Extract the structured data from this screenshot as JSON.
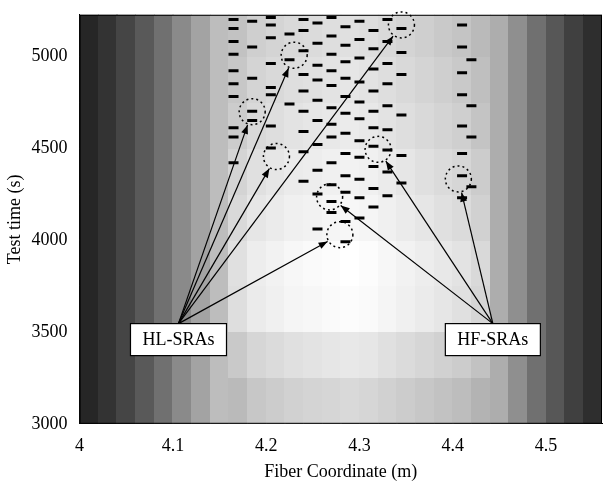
{
  "chart_data": {
    "type": "heatmap",
    "x_label": "Fiber Coordinate (m)",
    "y_label": "Test time (s)",
    "xlim": [
      4.0,
      4.56
    ],
    "ylim": [
      3000,
      5225
    ],
    "xticks": [
      4,
      4.1,
      4.2,
      4.3,
      4.4,
      4.5
    ],
    "yticks": [
      3000,
      3500,
      4000,
      4500,
      5000
    ],
    "grid": false,
    "x_bins": [
      4.0,
      4.02,
      4.04,
      4.06,
      4.08,
      4.1,
      4.12,
      4.14,
      4.16,
      4.18,
      4.2,
      4.22,
      4.24,
      4.26,
      4.28,
      4.3,
      4.32,
      4.34,
      4.36,
      4.38,
      4.4,
      4.42,
      4.44,
      4.46,
      4.48,
      4.5,
      4.52,
      4.54,
      4.56
    ],
    "y_bins": [
      3000,
      3250,
      3500,
      3750,
      4000,
      4250,
      4500,
      4750,
      5000,
      5225
    ],
    "cells": [
      [
        0.15,
        0.2,
        0.27,
        0.35,
        0.44,
        0.54,
        0.64,
        0.74,
        0.73,
        0.78,
        0.8,
        0.82,
        0.83,
        0.84,
        0.85,
        0.84,
        0.82,
        0.8,
        0.78,
        0.76,
        0.74,
        0.7,
        0.68,
        0.56,
        0.44,
        0.34,
        0.25,
        0.18
      ],
      [
        0.15,
        0.2,
        0.27,
        0.35,
        0.44,
        0.54,
        0.64,
        0.74,
        0.79,
        0.84,
        0.86,
        0.88,
        0.89,
        0.9,
        0.91,
        0.9,
        0.88,
        0.86,
        0.84,
        0.82,
        0.8,
        0.76,
        0.68,
        0.56,
        0.44,
        0.34,
        0.25,
        0.18
      ],
      [
        0.15,
        0.2,
        0.27,
        0.35,
        0.44,
        0.54,
        0.64,
        0.74,
        0.87,
        0.92,
        0.94,
        0.96,
        0.97,
        0.98,
        0.99,
        0.98,
        0.96,
        0.94,
        0.92,
        0.9,
        0.88,
        0.84,
        0.68,
        0.56,
        0.44,
        0.34,
        0.25,
        0.18
      ],
      [
        0.15,
        0.2,
        0.27,
        0.35,
        0.44,
        0.54,
        0.64,
        0.74,
        0.88,
        0.93,
        0.95,
        0.97,
        0.98,
        0.99,
        1,
        0.99,
        0.97,
        0.95,
        0.93,
        0.91,
        0.89,
        0.85,
        0.68,
        0.56,
        0.44,
        0.34,
        0.25,
        0.18
      ],
      [
        0.15,
        0.2,
        0.27,
        0.35,
        0.44,
        0.54,
        0.64,
        0.74,
        0.85,
        0.9,
        0.92,
        0.94,
        0.95,
        0.96,
        0.97,
        0.96,
        0.94,
        0.92,
        0.9,
        0.88,
        0.86,
        0.82,
        0.68,
        0.56,
        0.44,
        0.34,
        0.25,
        0.18
      ],
      [
        0.15,
        0.2,
        0.27,
        0.35,
        0.44,
        0.54,
        0.64,
        0.74,
        0.83,
        0.88,
        0.9,
        0.92,
        0.93,
        0.94,
        0.95,
        0.94,
        0.92,
        0.9,
        0.88,
        0.86,
        0.84,
        0.8,
        0.68,
        0.56,
        0.44,
        0.34,
        0.25,
        0.18
      ],
      [
        0.15,
        0.2,
        0.27,
        0.35,
        0.44,
        0.54,
        0.64,
        0.74,
        0.8,
        0.85,
        0.87,
        0.89,
        0.9,
        0.91,
        0.92,
        0.91,
        0.89,
        0.87,
        0.85,
        0.83,
        0.81,
        0.77,
        0.68,
        0.56,
        0.44,
        0.34,
        0.25,
        0.18
      ],
      [
        0.15,
        0.2,
        0.27,
        0.35,
        0.44,
        0.54,
        0.64,
        0.74,
        0.78,
        0.83,
        0.85,
        0.87,
        0.88,
        0.89,
        0.9,
        0.89,
        0.87,
        0.85,
        0.83,
        0.81,
        0.79,
        0.75,
        0.68,
        0.56,
        0.44,
        0.34,
        0.25,
        0.18
      ],
      [
        0.15,
        0.2,
        0.27,
        0.35,
        0.44,
        0.54,
        0.64,
        0.74,
        0.76,
        0.81,
        0.83,
        0.85,
        0.86,
        0.87,
        0.88,
        0.87,
        0.85,
        0.83,
        0.81,
        0.79,
        0.77,
        0.73,
        0.68,
        0.56,
        0.44,
        0.34,
        0.25,
        0.18
      ]
    ],
    "marks": {
      "color": "#000000",
      "marker": "dash",
      "points": [
        [
          4.165,
          4420
        ],
        [
          4.165,
          4560
        ],
        [
          4.165,
          4610
        ],
        [
          4.165,
          4780
        ],
        [
          4.165,
          4850
        ],
        [
          4.165,
          4920
        ],
        [
          4.165,
          5010
        ],
        [
          4.165,
          5080
        ],
        [
          4.165,
          5150
        ],
        [
          4.165,
          5200
        ],
        [
          4.185,
          4650
        ],
        [
          4.185,
          4700
        ],
        [
          4.185,
          4880
        ],
        [
          4.185,
          5050
        ],
        [
          4.185,
          5190
        ],
        [
          4.205,
          4500
        ],
        [
          4.205,
          4620
        ],
        [
          4.205,
          4790
        ],
        [
          4.205,
          4830
        ],
        [
          4.205,
          4960
        ],
        [
          4.205,
          5100
        ],
        [
          4.205,
          5170
        ],
        [
          4.205,
          5210
        ],
        [
          4.225,
          4740
        ],
        [
          4.225,
          4980
        ],
        [
          4.225,
          5120
        ],
        [
          4.24,
          4320
        ],
        [
          4.24,
          4480
        ],
        [
          4.24,
          4590
        ],
        [
          4.24,
          4700
        ],
        [
          4.24,
          4810
        ],
        [
          4.24,
          4900
        ],
        [
          4.24,
          5030
        ],
        [
          4.24,
          5140
        ],
        [
          4.24,
          5200
        ],
        [
          4.255,
          4060
        ],
        [
          4.255,
          4250
        ],
        [
          4.255,
          4380
        ],
        [
          4.255,
          4520
        ],
        [
          4.255,
          4650
        ],
        [
          4.255,
          4760
        ],
        [
          4.255,
          4870
        ],
        [
          4.255,
          4950
        ],
        [
          4.255,
          5070
        ],
        [
          4.255,
          5180
        ],
        [
          4.27,
          4150
        ],
        [
          4.27,
          4210
        ],
        [
          4.27,
          4300
        ],
        [
          4.27,
          4420
        ],
        [
          4.27,
          4560
        ],
        [
          4.27,
          4630
        ],
        [
          4.27,
          4720
        ],
        [
          4.27,
          4840
        ],
        [
          4.27,
          4920
        ],
        [
          4.27,
          5010
        ],
        [
          4.27,
          5110
        ],
        [
          4.27,
          5210
        ],
        [
          4.285,
          3990
        ],
        [
          4.285,
          4100
        ],
        [
          4.285,
          4260
        ],
        [
          4.285,
          4350
        ],
        [
          4.285,
          4470
        ],
        [
          4.285,
          4580
        ],
        [
          4.285,
          4690
        ],
        [
          4.285,
          4780
        ],
        [
          4.285,
          4880
        ],
        [
          4.285,
          4970
        ],
        [
          4.285,
          5060
        ],
        [
          4.285,
          5160
        ],
        [
          4.3,
          4120
        ],
        [
          4.3,
          4230
        ],
        [
          4.3,
          4330
        ],
        [
          4.3,
          4450
        ],
        [
          4.3,
          4540
        ],
        [
          4.3,
          4660
        ],
        [
          4.3,
          4750
        ],
        [
          4.3,
          4860
        ],
        [
          4.3,
          4990
        ],
        [
          4.3,
          5090
        ],
        [
          4.3,
          5190
        ],
        [
          4.315,
          4180
        ],
        [
          4.315,
          4280
        ],
        [
          4.315,
          4400
        ],
        [
          4.315,
          4510
        ],
        [
          4.315,
          4610
        ],
        [
          4.315,
          4700
        ],
        [
          4.315,
          4810
        ],
        [
          4.315,
          4930
        ],
        [
          4.315,
          5040
        ],
        [
          4.315,
          5140
        ],
        [
          4.33,
          4240
        ],
        [
          4.33,
          4370
        ],
        [
          4.33,
          4490
        ],
        [
          4.33,
          4600
        ],
        [
          4.33,
          4730
        ],
        [
          4.33,
          4850
        ],
        [
          4.33,
          4960
        ],
        [
          4.33,
          5080
        ],
        [
          4.33,
          5200
        ],
        [
          4.345,
          4310
        ],
        [
          4.345,
          4460
        ],
        [
          4.345,
          4680
        ],
        [
          4.345,
          4900
        ],
        [
          4.345,
          5020
        ],
        [
          4.345,
          5150
        ],
        [
          4.41,
          4230
        ],
        [
          4.41,
          4350
        ],
        [
          4.41,
          4470
        ],
        [
          4.41,
          4620
        ],
        [
          4.41,
          4790
        ],
        [
          4.41,
          4910
        ],
        [
          4.41,
          5050
        ],
        [
          4.41,
          5170
        ],
        [
          4.42,
          4290
        ],
        [
          4.42,
          4560
        ],
        [
          4.42,
          4730
        ],
        [
          4.42,
          4980
        ]
      ]
    },
    "annotations": [
      {
        "text": "HL-SRAs",
        "x": 4.106,
        "y": 3458,
        "targets": [
          [
            4.185,
            4698
          ],
          [
            4.211,
            4454
          ],
          [
            4.23,
            5005
          ],
          [
            4.345,
            5170
          ],
          [
            4.279,
            4029
          ]
        ]
      },
      {
        "text": "HF-SRAs",
        "x": 4.443,
        "y": 3458,
        "targets": [
          [
            4.268,
            4234
          ],
          [
            4.32,
            4493
          ],
          [
            4.406,
            4332
          ]
        ]
      }
    ]
  }
}
